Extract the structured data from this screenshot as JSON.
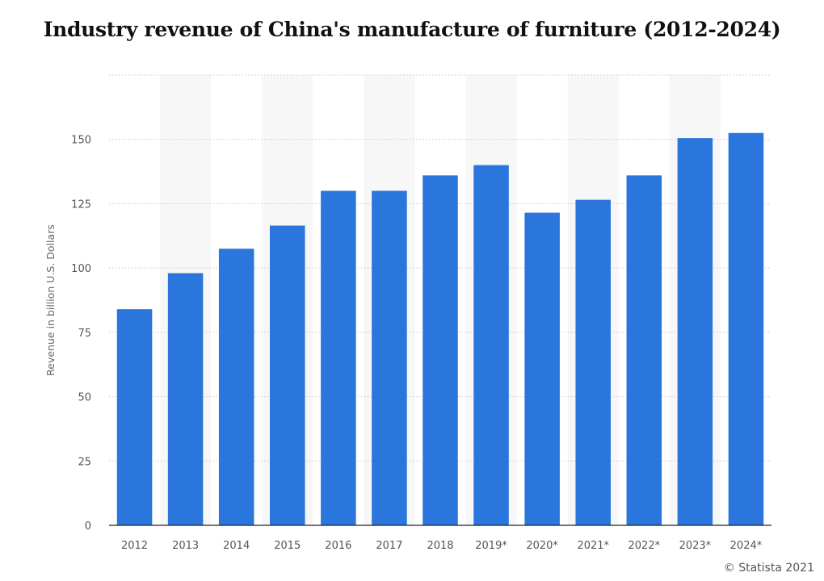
{
  "chart_data": {
    "type": "bar",
    "title": "Industry revenue of China's manufacture of furniture (2012-2024)",
    "ylabel": "Revenue in billion U.S. Dollars",
    "xlabel": "",
    "categories": [
      "2012",
      "2013",
      "2014",
      "2015",
      "2016",
      "2017",
      "2018",
      "2019*",
      "2020*",
      "2021*",
      "2022*",
      "2023*",
      "2024*"
    ],
    "values": [
      84,
      98,
      107.5,
      116.5,
      130,
      130,
      136,
      140,
      121.5,
      126.5,
      136,
      150.5,
      152.5
    ],
    "ylim": [
      0,
      175
    ],
    "yticks": [
      0,
      25,
      50,
      75,
      100,
      125,
      150
    ],
    "grid": true,
    "bar_color": "#2a76dd",
    "alt_band_color": "#f7f7f7"
  },
  "credit": "© Statista 2021"
}
